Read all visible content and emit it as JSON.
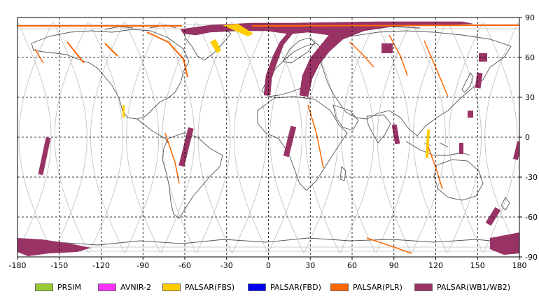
{
  "map": {
    "x_ticks": [
      "-180",
      "-150",
      "-120",
      "-90",
      "-60",
      "-30",
      "0",
      "30",
      "60",
      "90",
      "120",
      "150",
      "180"
    ],
    "y_ticks": [
      "90",
      "60",
      "30",
      "0",
      "-30",
      "-60",
      "-90"
    ],
    "gridline_style": "dashed",
    "orbit_track_color": "#bdbdbd",
    "coastline_color": "#555555",
    "frame_color": "#000000"
  },
  "legend": {
    "items": [
      {
        "label": "PRSIM",
        "color": "#99cc33"
      },
      {
        "label": "AVNIR-2",
        "color": "#ff33ff"
      },
      {
        "label": "PALSAR(FBS)",
        "color": "#ffcc00"
      },
      {
        "label": "PALSAR(FBD)",
        "color": "#0000ee"
      },
      {
        "label": "PALSAR(PLR)",
        "color": "#ff6600"
      },
      {
        "label": "PALSAR(WB1/WB2)",
        "color": "#993366"
      }
    ]
  }
}
